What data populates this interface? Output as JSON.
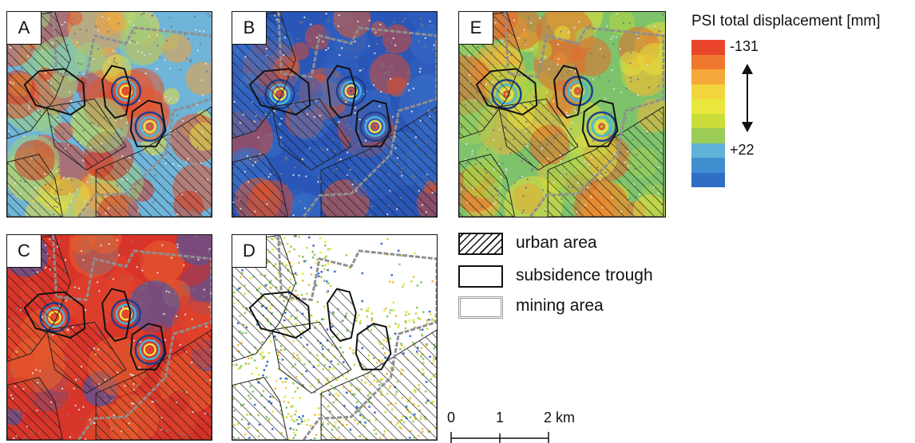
{
  "panels": [
    {
      "label": "A",
      "palette": [
        "#6fb4d9",
        "#9cd080",
        "#e6dc3a",
        "#f2a23a",
        "#e8522a",
        "#d63a26"
      ]
    },
    {
      "label": "B",
      "palette": [
        "#2a56b8",
        "#3b6fc9",
        "#2f62c0",
        "#d84a2e",
        "#3a74c8",
        "#e45a2c"
      ]
    },
    {
      "label": "C",
      "palette": [
        "#7ec36b",
        "#b7d640",
        "#e6df3c",
        "#f0b43a",
        "#e66a2c",
        "#9fd05a"
      ]
    },
    {
      "label": "D",
      "palette": [
        "#d9342a",
        "#e0452c",
        "#cf2f27",
        "#e8622e",
        "#2b5fc0",
        "#d63a2a"
      ]
    },
    {
      "label": "E",
      "palette": [
        "#9bcc58",
        "#c9dc3a",
        "#e8e63c",
        "#7ec36b",
        "#3a6cc8",
        "#f0c03c"
      ]
    }
  ],
  "legend": {
    "title": "PSI total displacement [mm]",
    "max_label": "-131",
    "min_label": "+22",
    "colors": [
      "#e8452a",
      "#f0782e",
      "#f5a83a",
      "#f2d43c",
      "#e9e63c",
      "#c9dc3a",
      "#9bcc58",
      "#5fb3d9",
      "#3f8fd0",
      "#2f6ec4"
    ]
  },
  "key": {
    "urban": "urban area",
    "trough": "subsidence trough",
    "mining": "mining area"
  },
  "scale_bar": {
    "ticks": [
      "0",
      "1",
      "2 km"
    ]
  }
}
